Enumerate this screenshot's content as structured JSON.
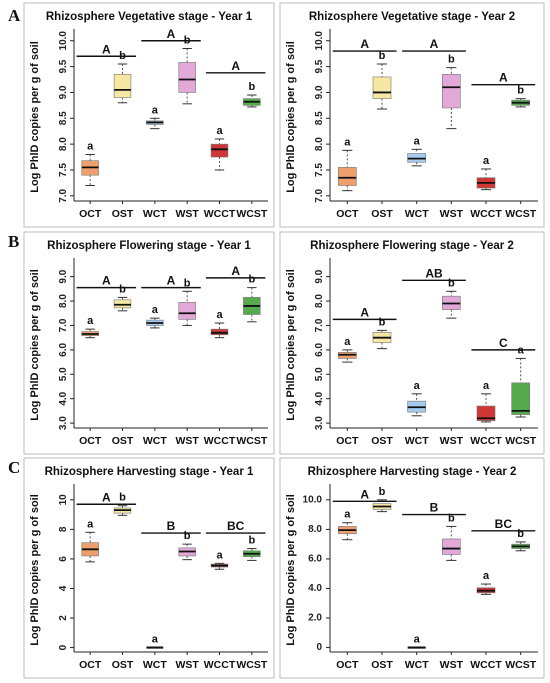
{
  "panel_letters": [
    "A",
    "B",
    "C"
  ],
  "chart_data": [
    {
      "type": "box",
      "title": "Rhizosphere Vegetative stage - Year 1",
      "ylabel": "Log PhlD copies per g of soil",
      "ylim": [
        6.9,
        10.15
      ],
      "yticks": [
        7.0,
        7.5,
        8.0,
        8.5,
        9.0,
        9.5,
        10.0
      ],
      "yticklabels": [
        "7.0",
        "7.5",
        "8.0",
        "8.5",
        "9.0",
        "9.5",
        "10.0"
      ],
      "ytick_rotate": true,
      "categories": [
        "OCT",
        "OST",
        "WCT",
        "WST",
        "WCCT",
        "WCST"
      ],
      "colors": [
        "#ee9f6e",
        "#f6e7a3",
        "#a6cbf0",
        "#e2a8d8",
        "#cf3737",
        "#55aa4d"
      ],
      "boxes": [
        {
          "min": 7.2,
          "q1": 7.4,
          "median": 7.55,
          "q3": 7.68,
          "max": 7.8
        },
        {
          "min": 8.8,
          "q1": 8.9,
          "median": 9.05,
          "q3": 9.35,
          "max": 9.55
        },
        {
          "min": 8.3,
          "q1": 8.38,
          "median": 8.42,
          "q3": 8.45,
          "max": 8.5
        },
        {
          "min": 8.78,
          "q1": 9.0,
          "median": 9.25,
          "q3": 9.58,
          "max": 9.85
        },
        {
          "min": 7.5,
          "q1": 7.75,
          "median": 7.9,
          "q3": 8.0,
          "max": 8.1
        },
        {
          "min": 8.72,
          "q1": 8.75,
          "median": 8.82,
          "q3": 8.88,
          "max": 8.95
        }
      ],
      "box_letters": [
        "a",
        "b",
        "a",
        "b",
        "a",
        "b"
      ],
      "groups": [
        {
          "from": 0,
          "to": 1,
          "y": 9.7,
          "label": "A"
        },
        {
          "from": 2,
          "to": 3,
          "y": 10.0,
          "label": "A"
        },
        {
          "from": 4,
          "to": 5,
          "y": 9.38,
          "label": "A"
        }
      ]
    },
    {
      "type": "box",
      "title": "Rhizosphere Vegetative stage - Year 2",
      "ylabel": "Log PhlD copies per g of soil",
      "ylim": [
        6.9,
        10.15
      ],
      "yticks": [
        7.0,
        7.5,
        8.0,
        8.5,
        9.0,
        9.5,
        10.0
      ],
      "yticklabels": [
        "7.0",
        "7.5",
        "8.0",
        "8.5",
        "9.0",
        "9.5",
        "10.0"
      ],
      "ytick_rotate": true,
      "categories": [
        "OCT",
        "OST",
        "WCT",
        "WST",
        "WCCT",
        "WCST"
      ],
      "colors": [
        "#ee9f6e",
        "#f6e7a3",
        "#a6cbf0",
        "#e2a8d8",
        "#cf3737",
        "#55aa4d"
      ],
      "boxes": [
        {
          "min": 7.1,
          "q1": 7.2,
          "median": 7.35,
          "q3": 7.55,
          "max": 7.88
        },
        {
          "min": 8.68,
          "q1": 8.88,
          "median": 9.0,
          "q3": 9.3,
          "max": 9.55
        },
        {
          "min": 7.58,
          "q1": 7.65,
          "median": 7.72,
          "q3": 7.82,
          "max": 7.9
        },
        {
          "min": 8.3,
          "q1": 8.7,
          "median": 9.1,
          "q3": 9.35,
          "max": 9.48
        },
        {
          "min": 7.12,
          "q1": 7.15,
          "median": 7.25,
          "q3": 7.35,
          "max": 7.52
        },
        {
          "min": 8.72,
          "q1": 8.75,
          "median": 8.8,
          "q3": 8.85,
          "max": 8.88
        }
      ],
      "box_letters": [
        "a",
        "b",
        "a",
        "b",
        "a",
        "b"
      ],
      "groups": [
        {
          "from": 0,
          "to": 1,
          "y": 9.8,
          "label": "A"
        },
        {
          "from": 2,
          "to": 3,
          "y": 9.8,
          "label": "A"
        },
        {
          "from": 4,
          "to": 5,
          "y": 9.15,
          "label": "A"
        }
      ]
    },
    {
      "type": "box",
      "title": "Rhizosphere Flowering stage - Year 1",
      "ylabel": "Log PhlD copies per g of soil",
      "ylim": [
        2.8,
        9.6
      ],
      "yticks": [
        3.0,
        4.0,
        5.0,
        6.0,
        7.0,
        8.0,
        9.0
      ],
      "yticklabels": [
        "3.0",
        "4.0",
        "5.0",
        "6.0",
        "7.0",
        "8.0",
        "9.0"
      ],
      "ytick_rotate": true,
      "categories": [
        "OCT",
        "OST",
        "WCT",
        "WST",
        "WCCT",
        "WCST"
      ],
      "colors": [
        "#ee9f6e",
        "#f6e7a3",
        "#a6cbf0",
        "#e2a8d8",
        "#cf3737",
        "#55aa4d"
      ],
      "boxes": [
        {
          "min": 6.5,
          "q1": 6.58,
          "median": 6.65,
          "q3": 6.75,
          "max": 6.85
        },
        {
          "min": 7.6,
          "q1": 7.72,
          "median": 7.85,
          "q3": 8.05,
          "max": 8.15
        },
        {
          "min": 6.9,
          "q1": 7.0,
          "median": 7.1,
          "q3": 7.22,
          "max": 7.3
        },
        {
          "min": 7.0,
          "q1": 7.25,
          "median": 7.5,
          "q3": 7.95,
          "max": 8.4
        },
        {
          "min": 6.5,
          "q1": 6.62,
          "median": 6.7,
          "q3": 6.85,
          "max": 7.1
        },
        {
          "min": 7.15,
          "q1": 7.45,
          "median": 7.8,
          "q3": 8.15,
          "max": 8.55
        }
      ],
      "box_letters": [
        "a",
        "b",
        "a",
        "b",
        "a",
        "b"
      ],
      "groups": [
        {
          "from": 0,
          "to": 1,
          "y": 8.55,
          "label": "A"
        },
        {
          "from": 2,
          "to": 3,
          "y": 8.55,
          "label": "A"
        },
        {
          "from": 4,
          "to": 5,
          "y": 8.95,
          "label": "A"
        }
      ]
    },
    {
      "type": "box",
      "title": "Rhizosphere Flowering stage - Year 2",
      "ylabel": "Log PhlD copies per g of soil",
      "ylim": [
        2.8,
        9.6
      ],
      "yticks": [
        3.0,
        4.0,
        5.0,
        6.0,
        7.0,
        8.0,
        9.0
      ],
      "yticklabels": [
        "3.0",
        "4.0",
        "5.0",
        "6.0",
        "7.0",
        "8.0",
        "9.0"
      ],
      "ytick_rotate": true,
      "categories": [
        "OCT",
        "OST",
        "WCT",
        "WST",
        "WCCT",
        "WCST"
      ],
      "colors": [
        "#ee9f6e",
        "#f6e7a3",
        "#a6cbf0",
        "#e2a8d8",
        "#cf3737",
        "#55aa4d"
      ],
      "boxes": [
        {
          "min": 5.5,
          "q1": 5.65,
          "median": 5.8,
          "q3": 5.9,
          "max": 6.0
        },
        {
          "min": 6.05,
          "q1": 6.3,
          "median": 6.5,
          "q3": 6.72,
          "max": 6.8
        },
        {
          "min": 3.3,
          "q1": 3.45,
          "median": 3.65,
          "q3": 3.9,
          "max": 4.2
        },
        {
          "min": 7.3,
          "q1": 7.65,
          "median": 7.9,
          "q3": 8.2,
          "max": 8.4
        },
        {
          "min": 3.05,
          "q1": 3.1,
          "median": 3.2,
          "q3": 3.7,
          "max": 4.2
        },
        {
          "min": 3.25,
          "q1": 3.35,
          "median": 3.5,
          "q3": 4.65,
          "max": 5.65
        }
      ],
      "box_letters": [
        "a",
        "b",
        "a",
        "b",
        "a",
        "a"
      ],
      "groups": [
        {
          "from": 0,
          "to": 1,
          "y": 7.25,
          "label": "A"
        },
        {
          "from": 2,
          "to": 3,
          "y": 8.85,
          "label": "AB"
        },
        {
          "from": 4,
          "to": 5,
          "y": 6.0,
          "label": "C"
        }
      ]
    },
    {
      "type": "box",
      "title": "Rhizosphere Harvesting stage - Year 1",
      "ylabel": "Log PhlD copies per g of soil",
      "ylim": [
        -0.3,
        10.8
      ],
      "yticks": [
        0,
        2,
        4,
        6,
        8,
        10
      ],
      "yticklabels": [
        "0",
        "2",
        "4",
        "6",
        "8",
        "10"
      ],
      "ytick_rotate": true,
      "categories": [
        "OCT",
        "OST",
        "WCT",
        "WST",
        "WCCT",
        "WCST"
      ],
      "colors": [
        "#ee9f6e",
        "#f6e7a3",
        "#a6cbf0",
        "#e2a8d8",
        "#cf3737",
        "#55aa4d"
      ],
      "boxes": [
        {
          "min": 5.8,
          "q1": 6.2,
          "median": 6.65,
          "q3": 7.1,
          "max": 7.8
        },
        {
          "min": 8.95,
          "q1": 9.1,
          "median": 9.3,
          "q3": 9.45,
          "max": 9.6
        },
        {
          "min": 0.0,
          "q1": 0.0,
          "median": 0.0,
          "q3": 0.0,
          "max": 0.0
        },
        {
          "min": 5.95,
          "q1": 6.2,
          "median": 6.5,
          "q3": 6.75,
          "max": 7.0
        },
        {
          "min": 5.3,
          "q1": 5.45,
          "median": 5.55,
          "q3": 5.65,
          "max": 5.7
        },
        {
          "min": 5.9,
          "q1": 6.15,
          "median": 6.35,
          "q3": 6.55,
          "max": 6.7
        }
      ],
      "box_letters": [
        "a",
        "b",
        "a",
        "b",
        "a",
        "b"
      ],
      "groups": [
        {
          "from": 0,
          "to": 1,
          "y": 9.7,
          "label": "A"
        },
        {
          "from": 2,
          "to": 3,
          "y": 7.75,
          "label": "B"
        },
        {
          "from": 4,
          "to": 5,
          "y": 7.75,
          "label": "BC"
        }
      ],
      "group_label_inline": true
    },
    {
      "type": "box",
      "title": "Rhizosphere Harvesting stage - Year 2",
      "ylabel": "Log PhlD copies per g of soil",
      "ylim": [
        -0.3,
        10.8
      ],
      "yticks": [
        0,
        2.0,
        4.0,
        6.0,
        8.0,
        10.0
      ],
      "yticklabels": [
        "0",
        "2.0",
        "4.0",
        "6.0",
        "8.0",
        "10.0"
      ],
      "ytick_rotate": false,
      "categories": [
        "OCT",
        "OST",
        "WCT",
        "WST",
        "WCCT",
        "WCST"
      ],
      "colors": [
        "#ee9f6e",
        "#f6e7a3",
        "#a6cbf0",
        "#e2a8d8",
        "#cf3737",
        "#55aa4d"
      ],
      "boxes": [
        {
          "min": 7.3,
          "q1": 7.7,
          "median": 7.95,
          "q3": 8.2,
          "max": 8.45
        },
        {
          "min": 9.2,
          "q1": 9.35,
          "median": 9.55,
          "q3": 9.75,
          "max": 10.0
        },
        {
          "min": 0.0,
          "q1": 0.0,
          "median": 0.0,
          "q3": 0.0,
          "max": 0.0
        },
        {
          "min": 5.9,
          "q1": 6.3,
          "median": 6.7,
          "q3": 7.35,
          "max": 8.2
        },
        {
          "min": 3.6,
          "q1": 3.7,
          "median": 3.85,
          "q3": 4.05,
          "max": 4.3
        },
        {
          "min": 6.55,
          "q1": 6.7,
          "median": 6.85,
          "q3": 7.0,
          "max": 7.15
        }
      ],
      "box_letters": [
        "a",
        "b",
        "a",
        "b",
        "a",
        "b"
      ],
      "groups": [
        {
          "from": 0,
          "to": 1,
          "y": 9.9,
          "label": "A"
        },
        {
          "from": 2,
          "to": 3,
          "y": 9.0,
          "label": "B"
        },
        {
          "from": 4,
          "to": 5,
          "y": 7.9,
          "label": "BC"
        }
      ],
      "group_label_inline": true
    }
  ]
}
